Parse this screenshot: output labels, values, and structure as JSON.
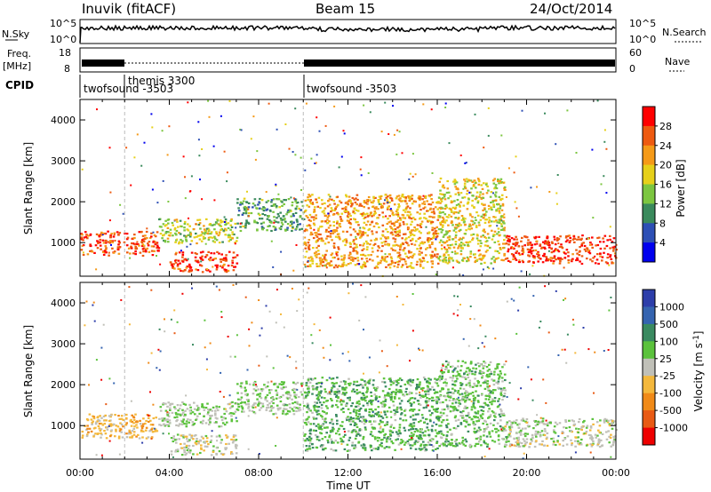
{
  "header": {
    "title": "Inuvik (fitACF)",
    "beam": "Beam 15",
    "date": "24/Oct/2014"
  },
  "summary_panels": {
    "nsky_label": "N.Sky",
    "nsearch_label": "N.Search",
    "nsky_ticks": [
      "10^5",
      "10^0"
    ],
    "nsearch_ticks": [
      "10^5",
      "10^0"
    ],
    "freq_label": "Freq.",
    "freq_unit": "[MHz]",
    "freq_ticks": [
      "18",
      "8"
    ],
    "nave_label": "Nave",
    "nave_ticks": [
      "60",
      "0"
    ],
    "cpid_label": "CPID",
    "cpid_segments": [
      {
        "name": "twofsound -3503",
        "start_hour": 0.0,
        "end_hour": 2.0
      },
      {
        "name": "themis 3300",
        "start_hour": 2.0,
        "end_hour": 10.0
      },
      {
        "name": "twofsound -3503",
        "start_hour": 10.0,
        "end_hour": 24.0
      }
    ]
  },
  "colors": {
    "power_scale": [
      "#0000ee",
      "#2d4fb5",
      "#3a8a5c",
      "#7cc640",
      "#e6d01a",
      "#f59a18",
      "#ee5a10",
      "#ff0000"
    ],
    "velocity_scale": [
      "#2d3eaa",
      "#3564b0",
      "#3a8a60",
      "#5bc23c",
      "#c0c0b8",
      "#f4b83c",
      "#f08a18",
      "#e85a14",
      "#ee0000"
    ]
  },
  "chart_data": [
    {
      "type": "heatmap",
      "name": "power",
      "xlabel": "",
      "ylabel": "Slant Range [km]",
      "xlim": [
        0,
        24
      ],
      "ylim": [
        180,
        4500
      ],
      "yticks": [
        "1000",
        "2000",
        "3000",
        "4000"
      ],
      "colorbar": {
        "label": "Power [dB]",
        "ticks": [
          "28",
          "24",
          "20",
          "16",
          "12",
          "8",
          "4"
        ],
        "range": [
          0,
          32
        ]
      },
      "regions": [
        {
          "x": [
            0.0,
            3.5
          ],
          "y": [
            700,
            1300
          ],
          "level": 27
        },
        {
          "x": [
            3.5,
            7.0
          ],
          "y": [
            1000,
            1600
          ],
          "level": 16
        },
        {
          "x": [
            4.0,
            7.0
          ],
          "y": [
            300,
            800
          ],
          "level": 28
        },
        {
          "x": [
            7.0,
            10.0
          ],
          "y": [
            1300,
            2100
          ],
          "level": 12
        },
        {
          "x": [
            10.0,
            16.0
          ],
          "y": [
            400,
            2200
          ],
          "level": 22
        },
        {
          "x": [
            16.0,
            19.0
          ],
          "y": [
            500,
            2600
          ],
          "level": 18
        },
        {
          "x": [
            19.0,
            24.0
          ],
          "y": [
            500,
            1200
          ],
          "level": 28
        }
      ]
    },
    {
      "type": "heatmap",
      "name": "velocity",
      "xlabel": "Time UT",
      "ylabel": "Slant Range [km]",
      "xlim": [
        0,
        24
      ],
      "ylim": [
        180,
        4500
      ],
      "xticks": [
        "00:00",
        "04:00",
        "08:00",
        "12:00",
        "16:00",
        "20:00",
        "00:00"
      ],
      "yticks": [
        "1000",
        "2000",
        "3000",
        "4000"
      ],
      "colorbar": {
        "label": "Velocity [m s^-1]",
        "ticks": [
          "1000",
          "500",
          "100",
          "25",
          "-25",
          "-100",
          "-500",
          "-1000"
        ],
        "range": [
          -1500,
          1500
        ]
      },
      "regions": [
        {
          "x": [
            0.0,
            3.5
          ],
          "y": [
            700,
            1300
          ],
          "level": -300
        },
        {
          "x": [
            3.5,
            7.0
          ],
          "y": [
            1000,
            1600
          ],
          "level": 150
        },
        {
          "x": [
            4.0,
            7.0
          ],
          "y": [
            300,
            800
          ],
          "level": 0
        },
        {
          "x": [
            7.0,
            10.0
          ],
          "y": [
            1300,
            2100
          ],
          "level": 200
        },
        {
          "x": [
            10.0,
            16.0
          ],
          "y": [
            400,
            2200
          ],
          "level": 400
        },
        {
          "x": [
            16.0,
            19.0
          ],
          "y": [
            500,
            2600
          ],
          "level": 300
        },
        {
          "x": [
            19.0,
            24.0
          ],
          "y": [
            500,
            1200
          ],
          "level": 50
        }
      ]
    }
  ]
}
